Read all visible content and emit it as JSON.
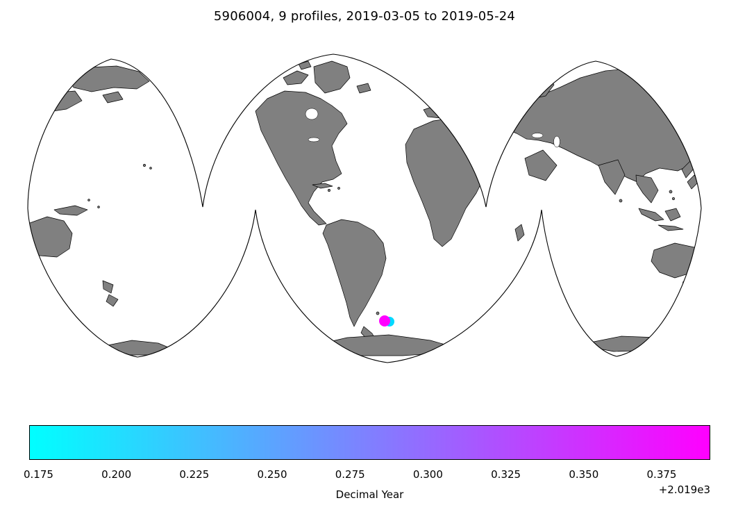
{
  "figure": {
    "background": "#ffffff"
  },
  "chart_data": {
    "type": "scatter",
    "title": "5906004, 9 profiles, 2019-03-05 to 2019-05-24",
    "float_id": "5906004",
    "n_profiles": 9,
    "date_start": "2019-03-05",
    "date_end": "2019-05-24",
    "projection": "interrupted world map, three lobes",
    "land_color": "#808080",
    "ocean_color": "#ffffff",
    "coastline_color": "#000000",
    "marker": {
      "location": "south of South America",
      "colors": [
        "#00d9ff",
        "#ff00ff"
      ]
    },
    "colorbar": {
      "label": "Decimal Year",
      "offset_text": "+2.019e3",
      "cmap": [
        "#00ffff",
        "#ff00ff"
      ],
      "vmin": 0.172,
      "vmax": 0.3906,
      "ticks": [
        0.175,
        0.2,
        0.225,
        0.25,
        0.275,
        0.3,
        0.325,
        0.35,
        0.375
      ]
    }
  }
}
